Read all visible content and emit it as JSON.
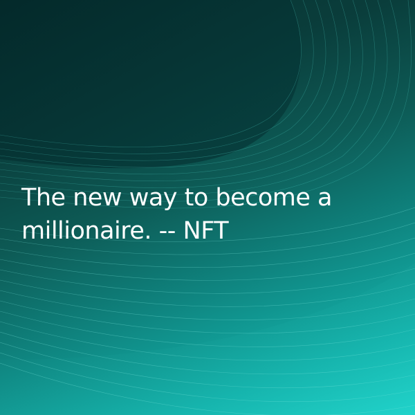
{
  "quote": {
    "text": "The new way to become a millionaire. -- NFT"
  },
  "colors": {
    "background_dark": "#06302f",
    "background_mid": "#0f8580",
    "background_light": "#1fd0c8",
    "text": "#ffffff"
  }
}
